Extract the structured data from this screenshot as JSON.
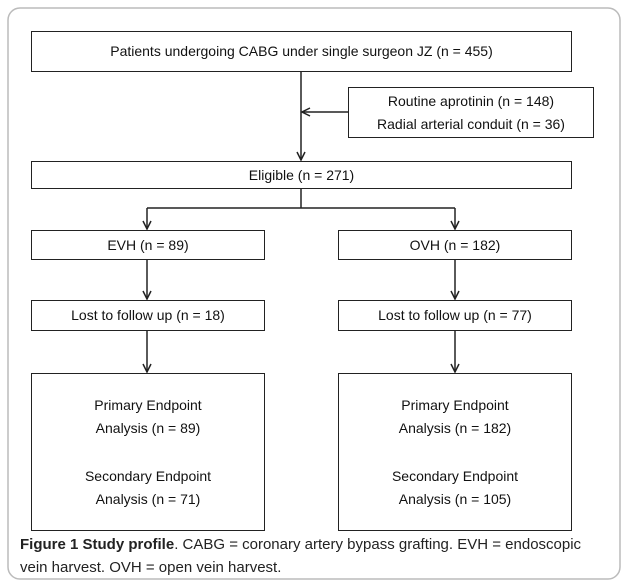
{
  "nodes": [
    {
      "lines": [
        "Patients undergoing CABG under single surgeon JZ (n = 455)"
      ]
    },
    {
      "lines": [
        "Routine aprotinin (n = 148)",
        "Radial arterial conduit (n = 36)"
      ]
    },
    {
      "lines": [
        "Eligible (n = 271)"
      ]
    },
    {
      "lines": [
        "EVH (n = 89)"
      ]
    },
    {
      "lines": [
        "OVH (n = 182)"
      ]
    },
    {
      "lines": [
        "Lost to follow up (n = 18)"
      ]
    },
    {
      "lines": [
        "Lost to follow up (n = 77)"
      ]
    },
    {
      "lines": [
        "Primary Endpoint",
        "Analysis (n = 89)",
        "Secondary Endpoint",
        "Analysis (n = 71)"
      ]
    },
    {
      "lines": [
        "Primary Endpoint",
        "Analysis (n = 182)",
        "Secondary Endpoint",
        "Analysis (n = 105)"
      ]
    }
  ],
  "caption": {
    "label": "Figure 1 Study profile",
    "text": ". CABG = coronary artery bypass grafting. EVH = endoscopic vein harvest. OVH = open vein harvest."
  }
}
